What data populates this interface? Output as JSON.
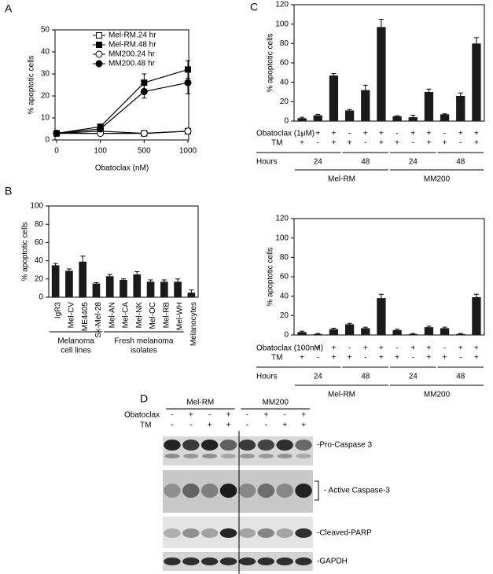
{
  "panel_labels": [
    "A",
    "B",
    "C",
    "D"
  ],
  "chart_data": [
    {
      "type": "line",
      "xlabel": "Obatoclax (nM)",
      "ylabel": "% apoptotic cells",
      "categories": [
        "0",
        "100",
        "500",
        "1000"
      ],
      "ylim": [
        0,
        50
      ],
      "yticks": [
        0,
        10,
        20,
        30,
        40,
        50
      ],
      "series": [
        {
          "name": "Mel-RM.24 hr",
          "color": "#000000",
          "marker": "square",
          "filled": false,
          "values": [
            3,
            4,
            3,
            4
          ]
        },
        {
          "name": "Mel-RM.48 hr",
          "color": "#000000",
          "marker": "square",
          "filled": true,
          "values": [
            3,
            6,
            26,
            32
          ],
          "errors": [
            1,
            1,
            4,
            4
          ]
        },
        {
          "name": "MM200.24 hr",
          "color": "#000000",
          "marker": "circle",
          "filled": false,
          "values": [
            3,
            3,
            3,
            4
          ]
        },
        {
          "name": "MM200.48 hr",
          "color": "#000000",
          "marker": "circle",
          "filled": true,
          "values": [
            3,
            5,
            22,
            26
          ],
          "errors": [
            1,
            1,
            3,
            5
          ]
        }
      ]
    },
    {
      "type": "bar",
      "ylabel": "% apoptotic cells",
      "color": "#1a1a1a",
      "categories": [
        "IgR3",
        "Mel-CV",
        "ME4405",
        "Sk-Mel-28",
        "Mel-AN",
        "Mel-CA",
        "Mel-NK",
        "Mel-OC",
        "Mel-RB",
        "Mel-WH",
        "Melanocytes"
      ],
      "values": [
        35,
        29,
        39,
        15,
        23,
        19,
        25,
        17,
        17,
        17,
        5
      ],
      "errors": [
        2,
        2,
        6,
        1,
        2,
        1,
        3,
        2,
        2,
        3,
        3
      ],
      "ylim": [
        0,
        100
      ],
      "yticks": [
        0,
        20,
        40,
        60,
        80,
        100
      ],
      "groups": [
        {
          "name": [
            "Melanoma",
            "cell lines"
          ],
          "categories": [
            "IgR3",
            "Mel-CV",
            "ME4405",
            "Sk-Mel-28"
          ]
        },
        {
          "name": [
            "Fresh melanoma",
            "isolates"
          ],
          "categories": [
            "Mel-AN",
            "Mel-CA",
            "Mel-NK",
            "Mel-OC",
            "Mel-RB",
            "Mel-WH"
          ]
        }
      ]
    },
    {
      "type": "bar",
      "ylabel": "% apoptotic cells",
      "color": "#1a1a1a",
      "values": [
        3,
        6,
        47,
        11,
        32,
        97,
        5,
        4,
        30,
        7,
        26,
        80
      ],
      "errors": [
        1,
        1,
        2,
        1,
        5,
        8,
        0.5,
        2,
        3,
        0.5,
        3,
        6
      ],
      "ylim": [
        0,
        120
      ],
      "yticks": [
        0,
        20,
        40,
        60,
        80,
        100,
        120
      ],
      "treatments": [
        {
          "label": "Obatoclax (1μM)",
          "signs": [
            "-",
            "+",
            "+",
            "-",
            "+",
            "+",
            "-",
            "+",
            "+",
            "-",
            "+",
            "+"
          ]
        },
        {
          "label": "TM",
          "signs": [
            "+",
            "-",
            "+",
            "+",
            "-",
            "+",
            "+",
            "-",
            "+",
            "+",
            "-",
            "+"
          ]
        }
      ],
      "hours_label": "Hours",
      "hours": [
        "24",
        "48",
        "24",
        "48"
      ],
      "cell_lines": [
        "Mel-RM",
        "MM200"
      ]
    },
    {
      "type": "bar",
      "ylabel": "% apoptotic cells",
      "color": "#1a1a1a",
      "values": [
        3,
        1,
        6,
        11,
        7,
        38,
        5,
        1,
        8,
        7,
        1,
        39
      ],
      "errors": [
        1,
        0.5,
        1,
        1,
        1,
        4,
        1,
        0.5,
        1,
        1,
        0.5,
        3
      ],
      "ylim": [
        0,
        120
      ],
      "yticks": [
        0,
        20,
        40,
        60,
        80,
        100,
        120
      ],
      "treatments": [
        {
          "label": "Obatoclax (100nM)",
          "signs": [
            "-",
            "+",
            "+",
            "-",
            "+",
            "+",
            "-",
            "+",
            "+",
            "-",
            "+",
            "+"
          ]
        },
        {
          "label": "TM",
          "signs": [
            "+",
            "-",
            "+",
            "+",
            "-",
            "+",
            "+",
            "-",
            "+",
            "+",
            "-",
            "+"
          ]
        }
      ],
      "hours_label": "Hours",
      "hours": [
        "24",
        "48",
        "24",
        "48"
      ],
      "cell_lines": [
        "Mel-RM",
        "MM200"
      ]
    }
  ],
  "blot": {
    "cell_lines": [
      "Mel-RM",
      "MM200"
    ],
    "rows": [
      {
        "label": "Obatoclax",
        "signs": [
          "-",
          "+",
          "-",
          "+",
          "-",
          "+",
          "-",
          "+"
        ]
      },
      {
        "label": "TM",
        "signs": [
          "-",
          "-",
          "+",
          "+",
          "-",
          "-",
          "+",
          "+"
        ]
      }
    ],
    "bands": [
      "-Pro-Caspase 3",
      "- Active Caspase-3",
      "-Cleaved-PARP",
      "-GAPDH"
    ]
  }
}
